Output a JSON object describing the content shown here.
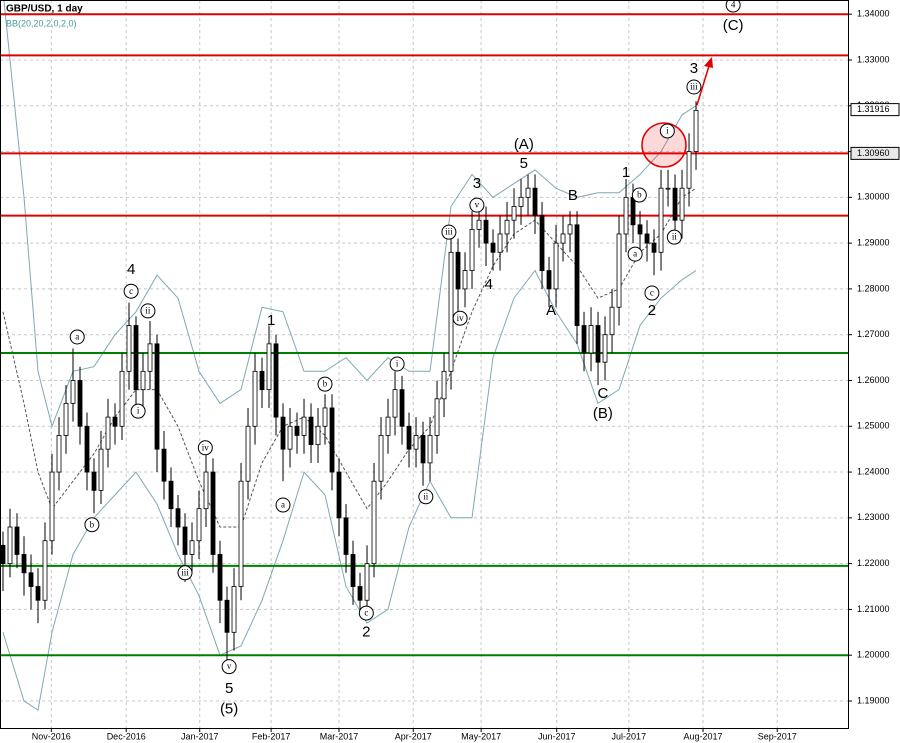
{
  "chart_data": {
    "type": "candlestick",
    "title": "GBP/USD, 1 day",
    "subtitle": "BB(20,20,2,0,2,0)",
    "xlim": [
      -0.43,
      120.71
    ],
    "ylim": [
      1.1841,
      1.3431
    ],
    "xticks": [
      {
        "value": 6.9,
        "label": "Nov-2016"
      },
      {
        "value": 17.6,
        "label": "Dec-2016"
      },
      {
        "value": 28.1,
        "label": "Jan-2017"
      },
      {
        "value": 38.3,
        "label": "Feb-2017"
      },
      {
        "value": 48,
        "label": "Mar-2017"
      },
      {
        "value": 58.6,
        "label": "Apr-2017"
      },
      {
        "value": 68.3,
        "label": "May-2017"
      },
      {
        "value": 79.1,
        "label": "Jun-2017"
      },
      {
        "value": 89.4,
        "label": "Jul-2017"
      },
      {
        "value": 100,
        "label": "Aug-2017"
      },
      {
        "value": 110.6,
        "label": "Sep-2017"
      }
    ],
    "yticks": [
      {
        "value": 1.19,
        "label": "1.19000"
      },
      {
        "value": 1.2,
        "label": "1.20000"
      },
      {
        "value": 1.21,
        "label": "1.21000"
      },
      {
        "value": 1.22,
        "label": "1.22000"
      },
      {
        "value": 1.23,
        "label": "1.23000"
      },
      {
        "value": 1.24,
        "label": "1.24000"
      },
      {
        "value": 1.25,
        "label": "1.25000"
      },
      {
        "value": 1.26,
        "label": "1.26000"
      },
      {
        "value": 1.27,
        "label": "1.27000"
      },
      {
        "value": 1.28,
        "label": "1.28000"
      },
      {
        "value": 1.29,
        "label": "1.29000"
      },
      {
        "value": 1.3,
        "label": "1.30000"
      },
      {
        "value": 1.31,
        "label": "1.31000"
      },
      {
        "value": 1.32,
        "label": "1.32000"
      },
      {
        "value": 1.33,
        "label": "1.33000"
      },
      {
        "value": 1.34,
        "label": "1.34000"
      }
    ],
    "grid": true,
    "candle_color": "#000000",
    "ohlc": [
      [
        1.224,
        1.227,
        1.214,
        1.22
      ],
      [
        1.22,
        1.232,
        1.217,
        1.228
      ],
      [
        1.228,
        1.231,
        1.219,
        1.222
      ],
      [
        1.222,
        1.226,
        1.213,
        1.218
      ],
      [
        1.218,
        1.222,
        1.21,
        1.215
      ],
      [
        1.215,
        1.219,
        1.207,
        1.212
      ],
      [
        1.212,
        1.229,
        1.21,
        1.225
      ],
      [
        1.225,
        1.244,
        1.222,
        1.24
      ],
      [
        1.24,
        1.252,
        1.236,
        1.248
      ],
      [
        1.248,
        1.259,
        1.244,
        1.255
      ],
      [
        1.255,
        1.267,
        1.251,
        1.26
      ],
      [
        1.26,
        1.263,
        1.246,
        1.25
      ],
      [
        1.25,
        1.253,
        1.236,
        1.24
      ],
      [
        1.24,
        1.243,
        1.231,
        1.236
      ],
      [
        1.236,
        1.249,
        1.233,
        1.245
      ],
      [
        1.245,
        1.256,
        1.241,
        1.252
      ],
      [
        1.252,
        1.255,
        1.246,
        1.25
      ],
      [
        1.25,
        1.266,
        1.247,
        1.262
      ],
      [
        1.262,
        1.277,
        1.258,
        1.272
      ],
      [
        1.272,
        1.274,
        1.253,
        1.258
      ],
      [
        1.258,
        1.266,
        1.254,
        1.262
      ],
      [
        1.262,
        1.273,
        1.258,
        1.268
      ],
      [
        1.268,
        1.27,
        1.24,
        1.245
      ],
      [
        1.245,
        1.249,
        1.234,
        1.238
      ],
      [
        1.238,
        1.241,
        1.228,
        1.232
      ],
      [
        1.232,
        1.235,
        1.224,
        1.228
      ],
      [
        1.228,
        1.231,
        1.216,
        1.222
      ],
      [
        1.222,
        1.229,
        1.218,
        1.225
      ],
      [
        1.225,
        1.236,
        1.221,
        1.232
      ],
      [
        1.232,
        1.245,
        1.228,
        1.24
      ],
      [
        1.24,
        1.243,
        1.218,
        1.222
      ],
      [
        1.222,
        1.225,
        1.207,
        1.212
      ],
      [
        1.212,
        1.215,
        1.1985,
        1.205
      ],
      [
        1.205,
        1.219,
        1.201,
        1.215
      ],
      [
        1.215,
        1.242,
        1.212,
        1.238
      ],
      [
        1.238,
        1.254,
        1.234,
        1.25
      ],
      [
        1.25,
        1.266,
        1.246,
        1.262
      ],
      [
        1.262,
        1.265,
        1.254,
        1.258
      ],
      [
        1.258,
        1.272,
        1.254,
        1.268
      ],
      [
        1.268,
        1.27,
        1.248,
        1.252
      ],
      [
        1.252,
        1.255,
        1.238,
        1.245
      ],
      [
        1.245,
        1.254,
        1.241,
        1.25
      ],
      [
        1.25,
        1.253,
        1.244,
        1.248
      ],
      [
        1.248,
        1.256,
        1.244,
        1.252
      ],
      [
        1.252,
        1.255,
        1.242,
        1.246
      ],
      [
        1.246,
        1.254,
        1.242,
        1.25
      ],
      [
        1.25,
        1.257,
        1.246,
        1.254
      ],
      [
        1.254,
        1.257,
        1.236,
        1.24
      ],
      [
        1.24,
        1.243,
        1.226,
        1.23
      ],
      [
        1.23,
        1.233,
        1.218,
        1.222
      ],
      [
        1.222,
        1.225,
        1.211,
        1.215
      ],
      [
        1.215,
        1.218,
        1.209,
        1.212
      ],
      [
        1.212,
        1.224,
        1.209,
        1.22
      ],
      [
        1.22,
        1.242,
        1.217,
        1.238
      ],
      [
        1.238,
        1.252,
        1.234,
        1.248
      ],
      [
        1.248,
        1.256,
        1.244,
        1.252
      ],
      [
        1.252,
        1.262,
        1.248,
        1.258
      ],
      [
        1.258,
        1.261,
        1.246,
        1.25
      ],
      [
        1.25,
        1.253,
        1.241,
        1.245
      ],
      [
        1.245,
        1.252,
        1.241,
        1.248
      ],
      [
        1.248,
        1.251,
        1.237,
        1.242
      ],
      [
        1.242,
        1.252,
        1.238,
        1.248
      ],
      [
        1.248,
        1.26,
        1.244,
        1.256
      ],
      [
        1.256,
        1.266,
        1.252,
        1.262
      ],
      [
        1.262,
        1.293,
        1.258,
        1.288
      ],
      [
        1.288,
        1.291,
        1.275,
        1.28
      ],
      [
        1.28,
        1.288,
        1.276,
        1.284
      ],
      [
        1.284,
        1.297,
        1.28,
        1.293
      ],
      [
        1.293,
        1.299,
        1.289,
        1.295
      ],
      [
        1.295,
        1.298,
        1.285,
        1.29
      ],
      [
        1.29,
        1.293,
        1.284,
        1.288
      ],
      [
        1.288,
        1.296,
        1.284,
        1.292
      ],
      [
        1.292,
        1.299,
        1.288,
        1.295
      ],
      [
        1.295,
        1.302,
        1.291,
        1.298
      ],
      [
        1.298,
        1.304,
        1.294,
        1.3
      ],
      [
        1.3,
        1.305,
        1.296,
        1.302
      ],
      [
        1.302,
        1.305,
        1.292,
        1.296
      ],
      [
        1.296,
        1.299,
        1.28,
        1.284
      ],
      [
        1.284,
        1.287,
        1.276,
        1.28
      ],
      [
        1.28,
        1.294,
        1.276,
        1.29
      ],
      [
        1.29,
        1.296,
        1.286,
        1.292
      ],
      [
        1.292,
        1.297,
        1.288,
        1.294
      ],
      [
        1.294,
        1.297,
        1.268,
        1.272
      ],
      [
        1.272,
        1.275,
        1.262,
        1.266
      ],
      [
        1.266,
        1.276,
        1.262,
        1.272
      ],
      [
        1.272,
        1.275,
        1.259,
        1.264
      ],
      [
        1.264,
        1.274,
        1.26,
        1.27
      ],
      [
        1.27,
        1.28,
        1.266,
        1.276
      ],
      [
        1.276,
        1.296,
        1.272,
        1.292
      ],
      [
        1.292,
        1.304,
        1.288,
        1.3
      ],
      [
        1.3,
        1.303,
        1.29,
        1.294
      ],
      [
        1.294,
        1.297,
        1.288,
        1.292
      ],
      [
        1.292,
        1.295,
        1.286,
        1.29
      ],
      [
        1.29,
        1.293,
        1.283,
        1.288
      ],
      [
        1.288,
        1.306,
        1.284,
        1.302
      ],
      [
        1.302,
        1.306,
        1.298,
        1.302
      ],
      [
        1.302,
        1.305,
        1.292,
        1.295
      ],
      [
        1.295,
        1.306,
        1.291,
        1.302
      ],
      [
        1.302,
        1.314,
        1.298,
        1.31
      ],
      [
        1.31,
        1.321,
        1.306,
        1.319
      ]
    ],
    "bands": {
      "color": "#7fa9b4",
      "x": [
        0,
        3,
        5,
        7,
        10,
        13,
        16,
        19,
        22,
        25,
        28,
        31,
        34,
        37,
        40,
        43,
        46,
        49,
        52,
        55,
        58,
        61,
        64,
        67,
        70,
        73,
        76,
        79,
        82,
        85,
        88,
        91,
        94,
        97,
        99
      ],
      "upper": [
        1.345,
        1.3,
        1.262,
        1.25,
        1.262,
        1.263,
        1.27,
        1.275,
        1.283,
        1.278,
        1.262,
        1.255,
        1.258,
        1.276,
        1.275,
        1.262,
        1.262,
        1.265,
        1.26,
        1.265,
        1.262,
        1.262,
        1.298,
        1.305,
        1.3,
        1.303,
        1.306,
        1.302,
        1.3,
        1.301,
        1.301,
        1.305,
        1.31,
        1.318,
        1.32
      ],
      "middle": [
        1.275,
        1.255,
        1.24,
        1.232,
        1.238,
        1.244,
        1.252,
        1.258,
        1.258,
        1.25,
        1.238,
        1.228,
        1.228,
        1.242,
        1.25,
        1.252,
        1.248,
        1.24,
        1.232,
        1.238,
        1.245,
        1.25,
        1.262,
        1.275,
        1.285,
        1.292,
        1.295,
        1.29,
        1.285,
        1.278,
        1.28,
        1.288,
        1.292,
        1.3,
        1.302
      ],
      "lower": [
        1.205,
        1.19,
        1.188,
        1.205,
        1.222,
        1.23,
        1.235,
        1.24,
        1.233,
        1.222,
        1.213,
        1.2,
        1.202,
        1.212,
        1.225,
        1.24,
        1.235,
        1.215,
        1.207,
        1.21,
        1.228,
        1.238,
        1.23,
        1.23,
        1.265,
        1.278,
        1.284,
        1.275,
        1.268,
        1.255,
        1.258,
        1.272,
        1.278,
        1.282,
        1.284
      ]
    },
    "levels": [
      {
        "value": 1.34,
        "color": "#e00000"
      },
      {
        "value": 1.331,
        "color": "#e00000"
      },
      {
        "value": 1.3096,
        "color": "#e00000"
      },
      {
        "value": 1.296,
        "color": "#e00000"
      },
      {
        "value": 1.266,
        "color": "#008000"
      },
      {
        "value": 1.2195,
        "color": "#008000"
      },
      {
        "value": 1.2,
        "color": "#008000"
      }
    ],
    "price_labels": [
      1.31916,
      {
        "value": 1.3096,
        "label": "1.30960"
      }
    ],
    "annotations": [
      {
        "text": "4",
        "x": 18.3,
        "y": 1.2841,
        "circled": false
      },
      {
        "text": "c",
        "x": 18.3,
        "y": 1.2795,
        "circled": true
      },
      {
        "text": "a",
        "x": 10.6,
        "y": 1.2695,
        "circled": true
      },
      {
        "text": "ii",
        "x": 20.7,
        "y": 1.2752,
        "circled": true
      },
      {
        "text": "i",
        "x": 19.3,
        "y": 1.2533,
        "circled": true
      },
      {
        "text": "b",
        "x": 12.7,
        "y": 1.2285,
        "circled": true
      },
      {
        "text": "iv",
        "x": 28.9,
        "y": 1.2453,
        "circled": true
      },
      {
        "text": "iii",
        "x": 26,
        "y": 1.218,
        "circled": true
      },
      {
        "text": "v",
        "x": 32.3,
        "y": 1.1975,
        "circled": true
      },
      {
        "text": "5",
        "x": 32.3,
        "y": 1.1926,
        "circled": false
      },
      {
        "text": "(5)",
        "x": 32.3,
        "y": 1.1881,
        "circled": false
      },
      {
        "text": "1",
        "x": 38.3,
        "y": 1.273,
        "circled": false
      },
      {
        "text": "a",
        "x": 40,
        "y": 1.2328,
        "circled": true
      },
      {
        "text": "b",
        "x": 46,
        "y": 1.2592,
        "circled": true
      },
      {
        "text": "c",
        "x": 51.9,
        "y": 1.2092,
        "circled": true
      },
      {
        "text": "2",
        "x": 51.9,
        "y": 1.2049,
        "circled": false
      },
      {
        "text": "i",
        "x": 56.3,
        "y": 1.2636,
        "circled": true
      },
      {
        "text": "ii",
        "x": 60.4,
        "y": 1.2346,
        "circled": true
      },
      {
        "text": "iii",
        "x": 63.7,
        "y": 1.2924,
        "circled": true
      },
      {
        "text": "iv",
        "x": 65.3,
        "y": 1.2736,
        "circled": true
      },
      {
        "text": "v",
        "x": 67.7,
        "y": 1.2983,
        "circled": true
      },
      {
        "text": "3",
        "x": 67.7,
        "y": 1.3029,
        "circled": false
      },
      {
        "text": "4",
        "x": 69.4,
        "y": 1.2808,
        "circled": false
      },
      {
        "text": "(A)",
        "x": 74.4,
        "y": 1.3114,
        "circled": false
      },
      {
        "text": "5",
        "x": 74.4,
        "y": 1.3073,
        "circled": false
      },
      {
        "text": "B",
        "x": 81.4,
        "y": 1.3003,
        "circled": false
      },
      {
        "text": "A",
        "x": 78.3,
        "y": 1.2752,
        "circled": false
      },
      {
        "text": "C",
        "x": 85.7,
        "y": 1.257,
        "circled": false
      },
      {
        "text": "(B)",
        "x": 85.7,
        "y": 1.2527,
        "circled": false
      },
      {
        "text": "1",
        "x": 89,
        "y": 1.3053,
        "circled": false
      },
      {
        "text": "b",
        "x": 90.9,
        "y": 1.3005,
        "circled": true
      },
      {
        "text": "a",
        "x": 90.3,
        "y": 1.2876,
        "circled": true
      },
      {
        "text": "c",
        "x": 92.7,
        "y": 1.2791,
        "circled": true
      },
      {
        "text": "2",
        "x": 92.7,
        "y": 1.2752,
        "circled": false
      },
      {
        "text": "i",
        "x": 94.9,
        "y": 1.3145,
        "circled": true
      },
      {
        "text": "ii",
        "x": 95.9,
        "y": 1.2913,
        "circled": true
      },
      {
        "text": "iii",
        "x": 98.7,
        "y": 1.3241,
        "circled": true
      },
      {
        "text": "3",
        "x": 98.7,
        "y": 1.328,
        "circled": false
      },
      {
        "text": "4",
        "x": 104.3,
        "y": 1.342,
        "circled": true
      },
      {
        "text": "(C)",
        "x": 104.3,
        "y": 1.3374,
        "circled": false
      }
    ]
  }
}
